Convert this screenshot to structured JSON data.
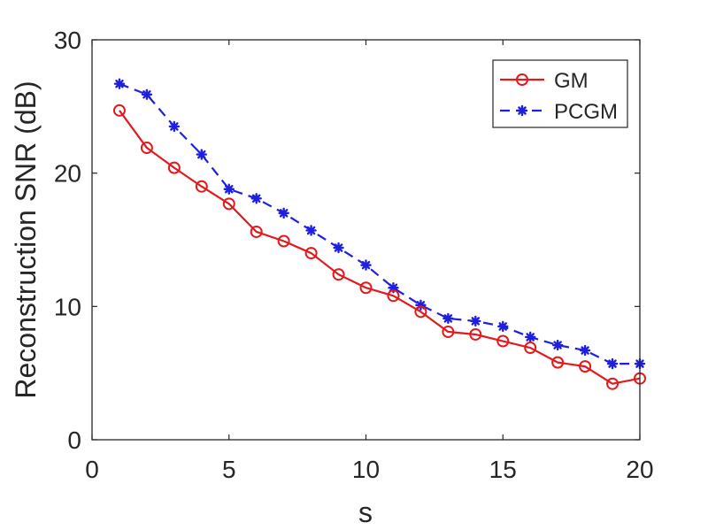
{
  "chart_data": {
    "type": "line",
    "title": "",
    "xlabel": "s",
    "ylabel": "Reconstruction SNR (dB)",
    "xlim": [
      0,
      20
    ],
    "ylim": [
      0,
      30
    ],
    "xticks": [
      0,
      5,
      10,
      15,
      20
    ],
    "yticks": [
      0,
      10,
      20,
      30
    ],
    "grid": false,
    "legend_position": "top-right",
    "x": [
      1,
      2,
      3,
      4,
      5,
      6,
      7,
      8,
      9,
      10,
      11,
      12,
      13,
      14,
      15,
      16,
      17,
      18,
      19,
      20
    ],
    "series": [
      {
        "name": "GM",
        "color": "#e31a1c",
        "line_style": "solid",
        "marker": "circle",
        "values": [
          24.7,
          21.9,
          20.4,
          19.0,
          17.7,
          15.6,
          14.9,
          14.0,
          12.4,
          11.4,
          10.8,
          9.6,
          8.1,
          7.9,
          7.4,
          6.9,
          5.8,
          5.5,
          4.2,
          4.6
        ]
      },
      {
        "name": "PCGM",
        "color": "#1f1fe0",
        "line_style": "dashed",
        "marker": "star",
        "values": [
          26.7,
          25.9,
          23.5,
          21.4,
          18.8,
          18.1,
          17.0,
          15.7,
          14.4,
          13.1,
          11.4,
          10.1,
          9.1,
          8.9,
          8.5,
          7.7,
          7.1,
          6.7,
          5.7,
          5.7
        ]
      }
    ]
  }
}
